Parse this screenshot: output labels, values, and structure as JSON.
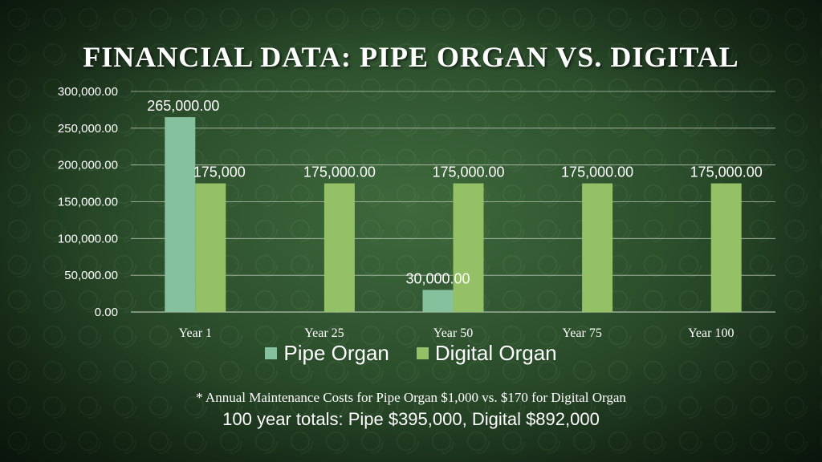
{
  "colors": {
    "pipe_organ": "#84c19c",
    "digital_organ": "#94c066",
    "gridline": "#c9d3c3",
    "axis_text": "#ffffff"
  },
  "footnote": "* Annual Maintenance Costs for Pipe Organ $1,000 vs. $170 for Digital Organ",
  "totals": "100 year totals:  Pipe $395,000,  Digital $892,000",
  "chart_data": {
    "type": "bar",
    "title": "FINANCIAL DATA: PIPE ORGAN VS. DIGITAL",
    "xlabel": "",
    "ylabel": "",
    "ylim": [
      0,
      300000
    ],
    "yticks": [
      0,
      50000,
      100000,
      150000,
      200000,
      250000,
      300000
    ],
    "ytick_labels": [
      "0.00",
      "50,000.00",
      "100,000.00",
      "150,000.00",
      "200,000.00",
      "250,000.00",
      "300,000.00"
    ],
    "grid": true,
    "legend_position": "bottom",
    "categories": [
      "Year 1",
      "Year 25",
      "Year 50",
      "Year 75",
      "Year 100"
    ],
    "series": [
      {
        "name": "Pipe Organ",
        "values": [
          265000,
          0,
          30000,
          0,
          0
        ],
        "data_labels": [
          "265,000.00",
          "",
          "30,000.00",
          "",
          ""
        ]
      },
      {
        "name": "Digital Organ",
        "values": [
          175000,
          175000,
          175000,
          175000,
          175000
        ],
        "data_labels": [
          "175,000",
          "175,000.00",
          "175,000.00",
          "175,000.00",
          "175,000.00"
        ]
      }
    ]
  }
}
